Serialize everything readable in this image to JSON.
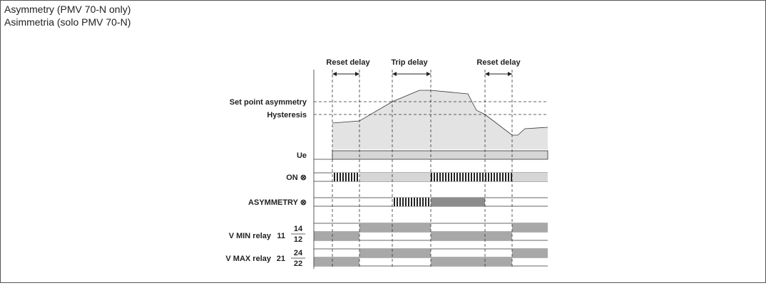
{
  "header": {
    "title": "Asymmetry (PMV 70-N only)",
    "subtitle": "Asimmetria (solo PMV 70-N)"
  },
  "delays": [
    "Reset delay",
    "Trip delay",
    "Reset delay"
  ],
  "levels": [
    "Set point asymmetry",
    "Hysteresis"
  ],
  "rows": {
    "ue": "Ue",
    "on": "ON ⊗",
    "asymmetry": "ASYMMETRY ⊗",
    "vmin": {
      "label": "V MIN relay",
      "common": "11",
      "no": "14",
      "nc": "12"
    },
    "vmax": {
      "label": "V MAX relay",
      "common": "21",
      "no": "24",
      "nc": "22"
    }
  }
}
